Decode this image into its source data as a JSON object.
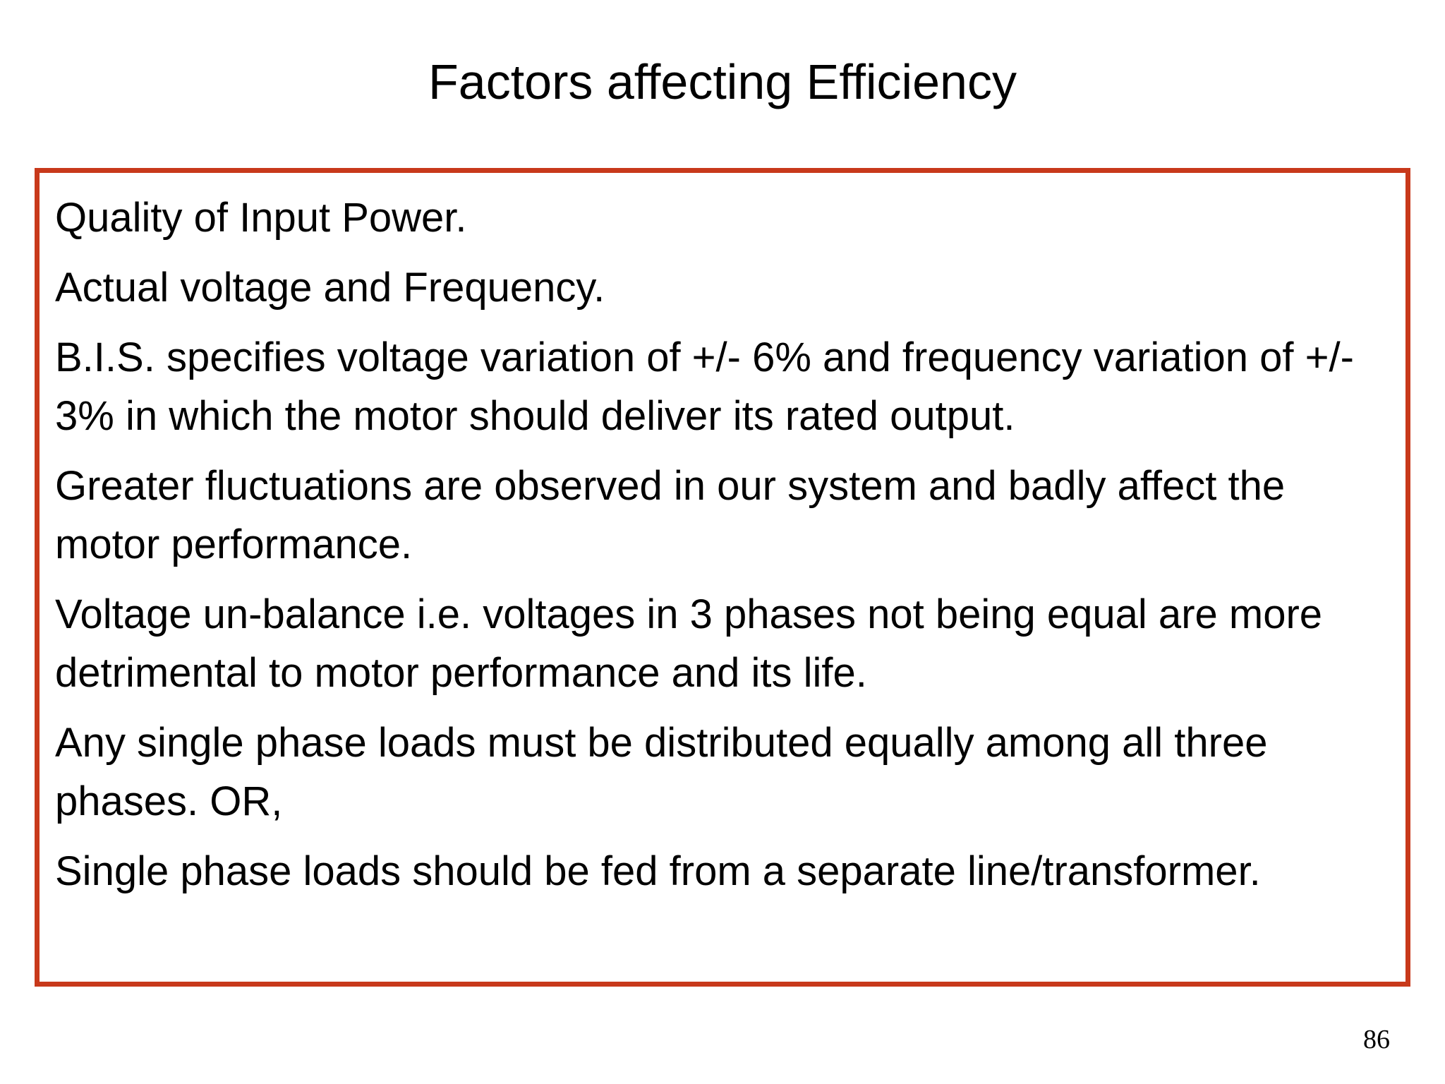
{
  "slide": {
    "title": "Factors affecting Efficiency",
    "border_color": "#c8391b",
    "items": [
      "Quality of Input Power.",
      "Actual voltage and Frequency.",
      "B.I.S. specifies voltage variation of +/- 6% and frequency variation of +/- 3% in which the motor should deliver its rated output.",
      "Greater fluctuations are observed in our system and badly affect the motor performance.",
      "Voltage un-balance i.e. voltages in 3 phases not being equal are more detrimental to motor performance and its life.",
      "Any single phase loads must be distributed equally among all three phases. OR,",
      "Single phase loads should be fed from a separate line/transformer."
    ],
    "page_number": "86"
  }
}
